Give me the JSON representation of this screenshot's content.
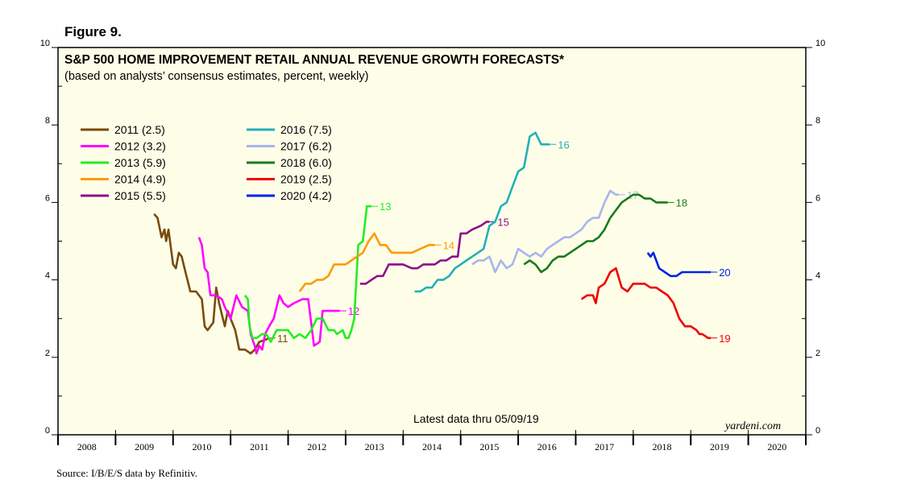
{
  "figure_label": "Figure 9.",
  "source_note": "Source: I/B/E/S data by Refinitiv.",
  "chart_data": {
    "type": "line",
    "title": "S&P 500 HOME IMPROVEMENT RETAIL ANNUAL REVENUE GROWTH FORECASTS*",
    "subtitle": "(based on analysts’ consensus estimates, percent, weekly)",
    "note": "Latest data thru 05/09/19",
    "brand": "yardeni.com",
    "ylim": [
      0,
      10
    ],
    "y_ticks": [
      "0",
      "2",
      "4",
      "6",
      "8",
      "10"
    ],
    "xlim": [
      2008,
      2021
    ],
    "x_categories": [
      "2008",
      "2009",
      "2010",
      "2011",
      "2012",
      "2013",
      "2014",
      "2015",
      "2016",
      "2017",
      "2018",
      "2019",
      "2020"
    ],
    "grid": false,
    "legend_position": "top-left",
    "background": "#fefee8",
    "series": [
      {
        "name": "2011 (2.5)",
        "end_label": "11",
        "color": "#7a4a0a",
        "x": [
          2009.67,
          2009.73,
          2009.8,
          2009.85,
          2009.88,
          2009.92,
          2010.0,
          2010.05,
          2010.1,
          2010.15,
          2010.2,
          2010.3,
          2010.4,
          2010.5,
          2010.55,
          2010.6,
          2010.7,
          2010.75,
          2010.8,
          2010.85,
          2010.9,
          2010.95,
          2011.0,
          2011.08,
          2011.15,
          2011.25,
          2011.35,
          2011.42,
          2011.5,
          2011.6,
          2011.67
        ],
        "values": [
          5.7,
          5.6,
          5.1,
          5.3,
          5.0,
          5.3,
          4.4,
          4.3,
          4.7,
          4.6,
          4.3,
          3.7,
          3.7,
          3.5,
          2.8,
          2.7,
          2.9,
          3.8,
          3.4,
          3.1,
          2.8,
          3.2,
          3.0,
          2.7,
          2.2,
          2.2,
          2.1,
          2.2,
          2.4,
          2.45,
          2.5
        ]
      },
      {
        "name": "2012 (3.2)",
        "end_label": "12",
        "color": "#ff00ff",
        "x": [
          2010.45,
          2010.5,
          2010.55,
          2010.6,
          2010.65,
          2010.75,
          2010.85,
          2010.9,
          2011.0,
          2011.1,
          2011.2,
          2011.3,
          2011.35,
          2011.42,
          2011.45,
          2011.5,
          2011.55,
          2011.6,
          2011.67,
          2011.75,
          2011.85,
          2011.92,
          2012.0,
          2012.1,
          2012.25,
          2012.35,
          2012.45,
          2012.55,
          2012.6,
          2012.75,
          2012.9
        ],
        "values": [
          5.1,
          4.9,
          4.3,
          4.2,
          3.6,
          3.6,
          3.5,
          3.3,
          3.0,
          3.6,
          3.3,
          3.2,
          2.6,
          2.3,
          2.1,
          2.3,
          2.2,
          2.6,
          2.8,
          3.0,
          3.6,
          3.4,
          3.3,
          3.4,
          3.5,
          3.5,
          2.3,
          2.4,
          3.2,
          3.2,
          3.2
        ]
      },
      {
        "name": "2013 (5.9)",
        "end_label": "13",
        "color": "#22ee22",
        "x": [
          2011.25,
          2011.3,
          2011.33,
          2011.38,
          2011.45,
          2011.55,
          2011.62,
          2011.7,
          2011.8,
          2011.9,
          2012.0,
          2012.1,
          2012.2,
          2012.3,
          2012.4,
          2012.5,
          2012.6,
          2012.7,
          2012.8,
          2012.85,
          2012.95,
          2013.0,
          2013.05,
          2013.1,
          2013.15,
          2013.22,
          2013.3,
          2013.37,
          2013.45
        ],
        "values": [
          3.6,
          3.5,
          2.8,
          2.5,
          2.5,
          2.6,
          2.6,
          2.4,
          2.7,
          2.7,
          2.7,
          2.5,
          2.6,
          2.5,
          2.7,
          3.0,
          3.0,
          2.7,
          2.7,
          2.6,
          2.7,
          2.5,
          2.5,
          2.7,
          3.0,
          4.9,
          5.0,
          5.9,
          5.9
        ]
      },
      {
        "name": "2014 (4.9)",
        "end_label": "14",
        "color": "#ff9900",
        "x": [
          2012.2,
          2012.3,
          2012.4,
          2012.5,
          2012.6,
          2012.7,
          2012.8,
          2012.9,
          2013.0,
          2013.1,
          2013.2,
          2013.3,
          2013.4,
          2013.5,
          2013.6,
          2013.7,
          2013.8,
          2013.9,
          2014.0,
          2014.15,
          2014.3,
          2014.45,
          2014.55
        ],
        "values": [
          3.7,
          3.9,
          3.9,
          4.0,
          4.0,
          4.1,
          4.4,
          4.4,
          4.4,
          4.5,
          4.6,
          4.7,
          5.0,
          5.2,
          4.9,
          4.9,
          4.7,
          4.7,
          4.7,
          4.7,
          4.8,
          4.9,
          4.9
        ]
      },
      {
        "name": "2015 (5.5)",
        "end_label": "15",
        "color": "#8b0f8b",
        "x": [
          2013.25,
          2013.35,
          2013.45,
          2013.55,
          2013.65,
          2013.75,
          2013.85,
          2014.0,
          2014.15,
          2014.25,
          2014.35,
          2014.45,
          2014.55,
          2014.65,
          2014.75,
          2014.85,
          2014.95,
          2015.0,
          2015.1,
          2015.2,
          2015.35,
          2015.45,
          2015.5
        ],
        "values": [
          3.9,
          3.9,
          4.0,
          4.1,
          4.1,
          4.4,
          4.4,
          4.4,
          4.3,
          4.3,
          4.4,
          4.4,
          4.4,
          4.5,
          4.5,
          4.6,
          4.6,
          5.2,
          5.2,
          5.3,
          5.4,
          5.5,
          5.5
        ]
      },
      {
        "name": "2016 (7.5)",
        "end_label": "16",
        "color": "#20b0b8",
        "x": [
          2014.2,
          2014.3,
          2014.4,
          2014.5,
          2014.6,
          2014.7,
          2014.8,
          2014.9,
          2015.0,
          2015.1,
          2015.2,
          2015.3,
          2015.4,
          2015.5,
          2015.6,
          2015.7,
          2015.8,
          2015.9,
          2016.0,
          2016.1,
          2016.2,
          2016.3,
          2016.4,
          2016.5,
          2016.55
        ],
        "values": [
          3.7,
          3.7,
          3.8,
          3.8,
          4.0,
          4.0,
          4.1,
          4.3,
          4.4,
          4.5,
          4.6,
          4.7,
          4.8,
          5.4,
          5.5,
          5.9,
          6.0,
          6.4,
          6.8,
          6.9,
          7.7,
          7.8,
          7.5,
          7.5,
          7.5
        ]
      },
      {
        "name": "2017 (6.2)",
        "end_label": "17",
        "color": "#a8b4ee",
        "x": [
          2015.2,
          2015.3,
          2015.4,
          2015.5,
          2015.6,
          2015.7,
          2015.8,
          2015.9,
          2016.0,
          2016.1,
          2016.2,
          2016.3,
          2016.4,
          2016.5,
          2016.6,
          2016.7,
          2016.8,
          2016.9,
          2017.0,
          2017.1,
          2017.2,
          2017.3,
          2017.4,
          2017.5,
          2017.6,
          2017.7,
          2017.75
        ],
        "values": [
          4.4,
          4.5,
          4.5,
          4.6,
          4.2,
          4.5,
          4.3,
          4.4,
          4.8,
          4.7,
          4.6,
          4.7,
          4.6,
          4.8,
          4.9,
          5.0,
          5.1,
          5.1,
          5.2,
          5.3,
          5.5,
          5.6,
          5.6,
          6.0,
          6.3,
          6.2,
          6.2
        ]
      },
      {
        "name": "2018 (6.0)",
        "end_label": "18",
        "color": "#1a7a1a",
        "x": [
          2016.1,
          2016.2,
          2016.3,
          2016.4,
          2016.5,
          2016.6,
          2016.7,
          2016.8,
          2016.9,
          2017.0,
          2017.1,
          2017.2,
          2017.3,
          2017.4,
          2017.5,
          2017.6,
          2017.7,
          2017.8,
          2017.9,
          2018.0,
          2018.1,
          2018.2,
          2018.3,
          2018.4,
          2018.5,
          2018.6,
          2018.6
        ],
        "values": [
          4.4,
          4.5,
          4.4,
          4.2,
          4.3,
          4.5,
          4.6,
          4.6,
          4.7,
          4.8,
          4.9,
          5.0,
          5.0,
          5.1,
          5.3,
          5.6,
          5.8,
          6.0,
          6.1,
          6.2,
          6.2,
          6.1,
          6.1,
          6.0,
          6.0,
          6.0,
          6.0
        ]
      },
      {
        "name": "2019 (2.5)",
        "end_label": "19",
        "color": "#ee0000",
        "x": [
          2017.1,
          2017.2,
          2017.3,
          2017.35,
          2017.4,
          2017.5,
          2017.6,
          2017.7,
          2017.8,
          2017.9,
          2018.0,
          2018.1,
          2018.2,
          2018.3,
          2018.4,
          2018.5,
          2018.6,
          2018.7,
          2018.8,
          2018.9,
          2019.0,
          2019.1,
          2019.15,
          2019.2,
          2019.25,
          2019.3,
          2019.35
        ],
        "values": [
          3.5,
          3.6,
          3.6,
          3.4,
          3.8,
          3.9,
          4.2,
          4.3,
          3.8,
          3.7,
          3.9,
          3.9,
          3.9,
          3.8,
          3.8,
          3.7,
          3.6,
          3.4,
          3.0,
          2.8,
          2.8,
          2.7,
          2.6,
          2.6,
          2.55,
          2.5,
          2.5
        ]
      },
      {
        "name": "2020 (4.2)",
        "end_label": "20",
        "color": "#0022ee",
        "x": [
          2018.25,
          2018.3,
          2018.35,
          2018.4,
          2018.45,
          2018.55,
          2018.65,
          2018.75,
          2018.85,
          2018.95,
          2019.05,
          2019.15,
          2019.25,
          2019.35
        ],
        "values": [
          4.7,
          4.6,
          4.7,
          4.5,
          4.3,
          4.2,
          4.1,
          4.1,
          4.2,
          4.2,
          4.2,
          4.2,
          4.2,
          4.2
        ]
      }
    ]
  }
}
